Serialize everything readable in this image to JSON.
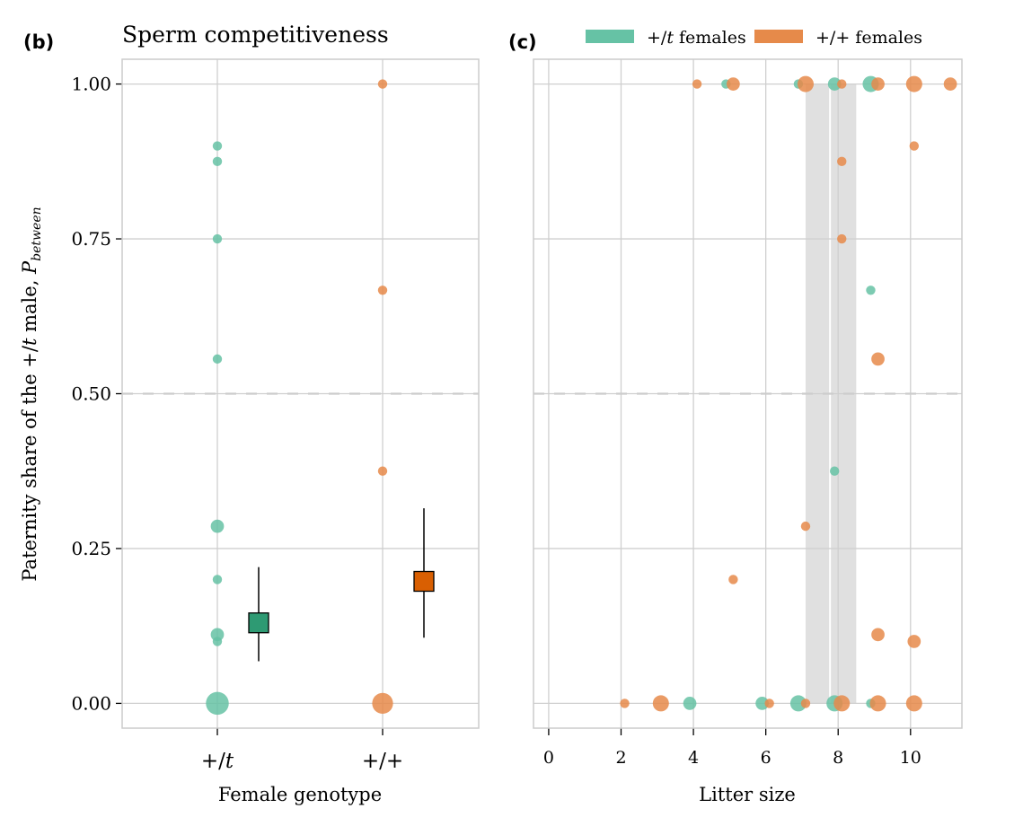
{
  "colors": {
    "pt_female": "#66c2a5",
    "pp_female": "#e68a4a",
    "pt_mean": "#2e9a73",
    "pp_mean": "#d95f02",
    "grid": "#cfcfcf",
    "band": "#e0e0e0"
  },
  "chart_data": [
    {
      "panel_label": "(b)",
      "type": "scatter",
      "title": "Sperm competitiveness",
      "xlabel": "Female genotype",
      "ylabel_main": "Paternity share of the +/",
      "ylabel_italic_t": "t",
      "ylabel_tail": " male, ",
      "ylabel_P": "P",
      "ylabel_sub": "between",
      "categories": [
        {
          "label_prefix": "+/",
          "label_italic": "t"
        },
        {
          "label_prefix": "+/+",
          "label_italic": ""
        }
      ],
      "ylim": [
        -0.04,
        1.04
      ],
      "yticks": [
        {
          "value": 0.0,
          "label": "0.00"
        },
        {
          "value": 0.25,
          "label": "0.25"
        },
        {
          "value": 0.5,
          "label": "0.50"
        },
        {
          "value": 0.75,
          "label": "0.75"
        },
        {
          "value": 1.0,
          "label": "1.00"
        }
      ],
      "reference_line": {
        "value": 0.5,
        "style": "dashed"
      },
      "grid": true,
      "series": [
        {
          "name": "+/t females",
          "category_index": 0,
          "points": [
            {
              "y": 0.9,
              "n": 1
            },
            {
              "y": 0.875,
              "n": 1
            },
            {
              "y": 0.75,
              "n": 1
            },
            {
              "y": 0.556,
              "n": 1
            },
            {
              "y": 0.286,
              "n": 2
            },
            {
              "y": 0.2,
              "n": 1
            },
            {
              "y": 0.111,
              "n": 2
            },
            {
              "y": 0.1,
              "n": 1
            },
            {
              "y": 0.0,
              "n": 6
            }
          ],
          "mean": 0.13,
          "ci_low": 0.068,
          "ci_high": 0.22
        },
        {
          "name": "+/+ females",
          "category_index": 1,
          "points": [
            {
              "y": 1.0,
              "n": 1
            },
            {
              "y": 0.667,
              "n": 1
            },
            {
              "y": 0.375,
              "n": 1
            },
            {
              "y": 0.0,
              "n": 5
            }
          ],
          "mean": 0.197,
          "ci_low": 0.106,
          "ci_high": 0.315
        }
      ]
    },
    {
      "panel_label": "(c)",
      "type": "scatter",
      "title": "",
      "xlabel": "Litter size",
      "ylabel": "",
      "xlim": [
        -0.42,
        11.42
      ],
      "ylim": [
        -0.04,
        1.04
      ],
      "xticks": [
        0,
        2,
        4,
        6,
        8,
        10
      ],
      "reference_line": {
        "value": 0.5,
        "style": "dashed"
      },
      "shaded_bands": [
        [
          7.1,
          7.75
        ],
        [
          7.8,
          8.5
        ]
      ],
      "grid": true,
      "legend": {
        "placement": "top",
        "entries": [
          {
            "label_prefix": "+/",
            "label_italic": "t",
            "label_suffix": " females",
            "color_key": "pt_female"
          },
          {
            "label_prefix": "+/+",
            "label_italic": "",
            "label_suffix": " females",
            "color_key": "pp_female"
          }
        ]
      },
      "series": [
        {
          "name": "+/t females",
          "points": [
            {
              "x": 4.9,
              "y": 1.0,
              "n": 1
            },
            {
              "x": 6.9,
              "y": 1.0,
              "n": 1
            },
            {
              "x": 7.9,
              "y": 1.0,
              "n": 2
            },
            {
              "x": 8.9,
              "y": 1.0,
              "n": 3
            },
            {
              "x": 8.9,
              "y": 0.667,
              "n": 1
            },
            {
              "x": 7.9,
              "y": 0.375,
              "n": 1
            },
            {
              "x": 3.9,
              "y": 0.0,
              "n": 2
            },
            {
              "x": 5.9,
              "y": 0.0,
              "n": 2
            },
            {
              "x": 6.9,
              "y": 0.0,
              "n": 3
            },
            {
              "x": 7.9,
              "y": 0.0,
              "n": 3
            },
            {
              "x": 8.9,
              "y": 0.0,
              "n": 1
            }
          ]
        },
        {
          "name": "+/+ females",
          "points": [
            {
              "x": 4.1,
              "y": 1.0,
              "n": 1
            },
            {
              "x": 5.1,
              "y": 1.0,
              "n": 2
            },
            {
              "x": 7.1,
              "y": 1.0,
              "n": 3
            },
            {
              "x": 8.1,
              "y": 1.0,
              "n": 1
            },
            {
              "x": 9.1,
              "y": 1.0,
              "n": 2
            },
            {
              "x": 10.1,
              "y": 1.0,
              "n": 3
            },
            {
              "x": 11.1,
              "y": 1.0,
              "n": 2
            },
            {
              "x": 10.1,
              "y": 0.9,
              "n": 1
            },
            {
              "x": 8.1,
              "y": 0.875,
              "n": 1
            },
            {
              "x": 8.1,
              "y": 0.75,
              "n": 1
            },
            {
              "x": 9.1,
              "y": 0.556,
              "n": 2
            },
            {
              "x": 7.1,
              "y": 0.286,
              "n": 1
            },
            {
              "x": 5.1,
              "y": 0.2,
              "n": 1
            },
            {
              "x": 9.1,
              "y": 0.111,
              "n": 2
            },
            {
              "x": 10.1,
              "y": 0.1,
              "n": 2
            },
            {
              "x": 2.1,
              "y": 0.0,
              "n": 1
            },
            {
              "x": 3.1,
              "y": 0.0,
              "n": 3
            },
            {
              "x": 6.1,
              "y": 0.0,
              "n": 1
            },
            {
              "x": 7.1,
              "y": 0.0,
              "n": 1
            },
            {
              "x": 8.1,
              "y": 0.0,
              "n": 3
            },
            {
              "x": 9.1,
              "y": 0.0,
              "n": 3
            },
            {
              "x": 10.1,
              "y": 0.0,
              "n": 3
            }
          ]
        }
      ]
    }
  ]
}
